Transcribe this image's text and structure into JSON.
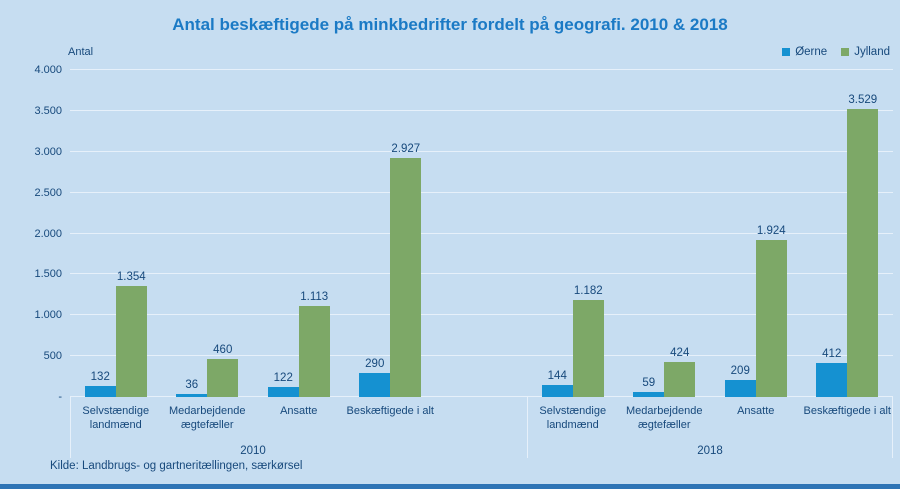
{
  "page": {
    "background_color": "#c6ddf1",
    "bottom_bar_color": "#2e74b5",
    "gridline_color": "#e6f0fa",
    "text_color": "#17497c",
    "title_color": "#1b7ac5"
  },
  "title": "Antal beskæftigede på minkbedrifter fordelt på geografi. 2010 & 2018",
  "axis": {
    "unit_label": "Antal",
    "ticks_top_down": [
      "4.000",
      "3.500",
      "3.000",
      "2.500",
      "2.000",
      "1.500",
      "1.000",
      "500",
      "-"
    ]
  },
  "legend": [
    {
      "label": "Øerne",
      "color": "#1591d1"
    },
    {
      "label": "Jylland",
      "color": "#7da867"
    }
  ],
  "source": "Kilde: Landbrugs- og gartneritællingen, særkørsel",
  "chart_data": {
    "type": "bar",
    "title": "Antal beskæftigede på minkbedrifter fordelt på geografi. 2010 & 2018",
    "ylabel": "Antal",
    "ylim": [
      0,
      4000
    ],
    "ytick_interval": 500,
    "grid": true,
    "legend_position": "top-right",
    "groups": [
      {
        "label": "2010",
        "categories": [
          "Selvstændige landmænd",
          "Medarbejdende ægtefæller",
          "Ansatte",
          "Beskæftigede i alt"
        ],
        "category_lines": [
          [
            "Selvstændige",
            "landmænd"
          ],
          [
            "Medarbejdende",
            "ægtefæller"
          ],
          [
            "Ansatte"
          ],
          [
            "Beskæftigede i alt"
          ]
        ],
        "series": [
          {
            "name": "Øerne",
            "color": "#1591d1",
            "values": [
              132,
              36,
              122,
              290
            ],
            "labels": [
              "132",
              "36",
              "122",
              "290"
            ]
          },
          {
            "name": "Jylland",
            "color": "#7da867",
            "values": [
              1354,
              460,
              1113,
              2927
            ],
            "labels": [
              "1.354",
              "460",
              "1.113",
              "2.927"
            ]
          }
        ]
      },
      {
        "label": "2018",
        "categories": [
          "Selvstændige landmænd",
          "Medarbejdende ægtefæller",
          "Ansatte",
          "Beskæftigede i alt"
        ],
        "category_lines": [
          [
            "Selvstændige",
            "landmænd"
          ],
          [
            "Medarbejdende",
            "ægtefæller"
          ],
          [
            "Ansatte"
          ],
          [
            "Beskæftigede i alt"
          ]
        ],
        "series": [
          {
            "name": "Øerne",
            "color": "#1591d1",
            "values": [
              144,
              59,
              209,
              412
            ],
            "labels": [
              "144",
              "59",
              "209",
              "412"
            ]
          },
          {
            "name": "Jylland",
            "color": "#7da867",
            "values": [
              1182,
              424,
              1924,
              3529
            ],
            "labels": [
              "1.182",
              "424",
              "1.924",
              "3.529"
            ]
          }
        ]
      }
    ]
  }
}
